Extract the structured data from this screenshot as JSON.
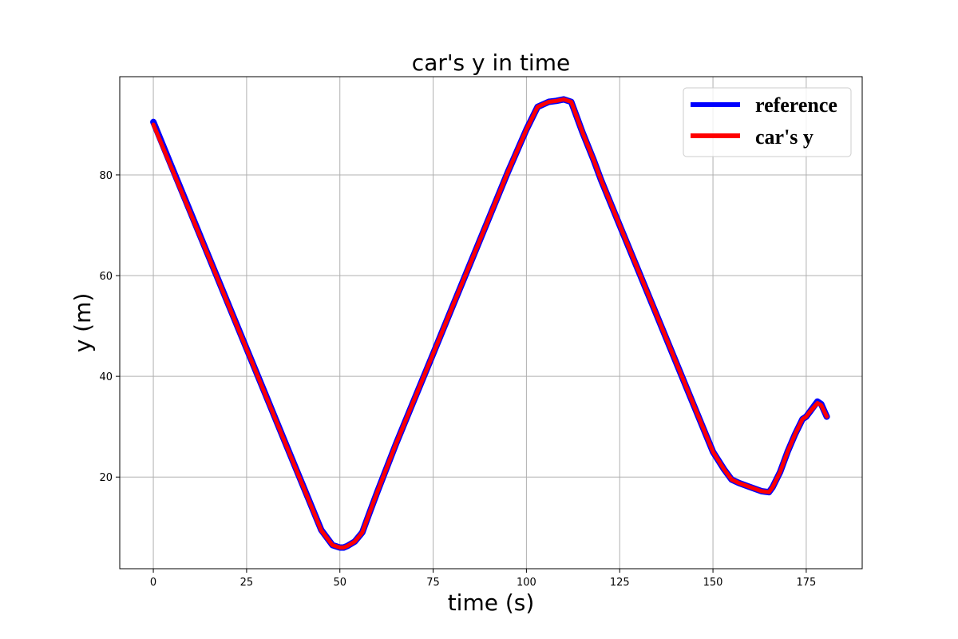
{
  "chart_data": {
    "type": "line",
    "title": "car's y in time",
    "xlabel": "time (s)",
    "ylabel": "y (m)",
    "xlim": [
      -9,
      190
    ],
    "ylim": [
      1.8,
      99.5
    ],
    "xticks": [
      0,
      25,
      50,
      75,
      100,
      125,
      150,
      175
    ],
    "yticks": [
      20,
      40,
      60,
      80
    ],
    "grid": true,
    "legend_position": "top-right",
    "series": [
      {
        "name": "reference",
        "color": "#0000ff",
        "x": [
          0,
          5,
          10,
          15,
          20,
          25,
          30,
          35,
          40,
          45,
          48,
          50,
          51,
          52,
          54,
          56,
          58,
          60,
          65,
          70,
          75,
          80,
          85,
          90,
          95,
          100,
          103,
          106,
          108,
          110,
          112,
          113,
          115,
          118,
          120,
          125,
          130,
          135,
          140,
          145,
          150,
          153,
          155,
          157,
          160,
          163,
          165,
          166,
          168,
          170,
          172,
          174,
          175,
          176,
          178,
          179,
          180.5
        ],
        "y": [
          90.5,
          81.5,
          72.5,
          63.5,
          54.5,
          45.5,
          36.5,
          27.5,
          18.5,
          9.5,
          6.5,
          6,
          6,
          6.3,
          7.2,
          9,
          13,
          17,
          26.5,
          35.5,
          44.5,
          53.5,
          62.5,
          71.5,
          80.5,
          89,
          93.5,
          94.5,
          94.7,
          95,
          94.5,
          92.5,
          88.5,
          83,
          79,
          70,
          61,
          52,
          43,
          34,
          25,
          21.5,
          19.5,
          18.8,
          18,
          17.2,
          17,
          18,
          21,
          25,
          28.5,
          31.5,
          32,
          33,
          35,
          34.5,
          32
        ]
      },
      {
        "name": "car's y",
        "color": "#ff0000",
        "x": [
          0,
          5,
          10,
          15,
          20,
          25,
          30,
          35,
          40,
          45,
          48,
          50,
          51,
          52,
          54,
          56,
          58,
          60,
          65,
          70,
          75,
          80,
          85,
          90,
          95,
          100,
          103,
          106,
          108,
          110,
          112,
          113,
          115,
          118,
          120,
          125,
          130,
          135,
          140,
          145,
          150,
          153,
          155,
          157,
          160,
          163,
          165,
          166,
          168,
          170,
          172,
          174,
          175,
          176,
          178,
          179,
          180.5
        ],
        "y": [
          90,
          81.2,
          72.3,
          63.4,
          54.4,
          45.4,
          36.4,
          27.4,
          18.4,
          9.4,
          6.5,
          6,
          6,
          6.3,
          7.2,
          9,
          13,
          17,
          26.5,
          35.5,
          44.5,
          53.5,
          62.5,
          71.5,
          80.5,
          89,
          93.5,
          94.5,
          94.7,
          95,
          94.5,
          92.5,
          88.5,
          83,
          79,
          70,
          61,
          52,
          43,
          34,
          25,
          21.5,
          19.5,
          18.8,
          18,
          17.2,
          17,
          18,
          21,
          25,
          28.5,
          31.5,
          32,
          33,
          34.7,
          34.3,
          32
        ]
      }
    ]
  }
}
